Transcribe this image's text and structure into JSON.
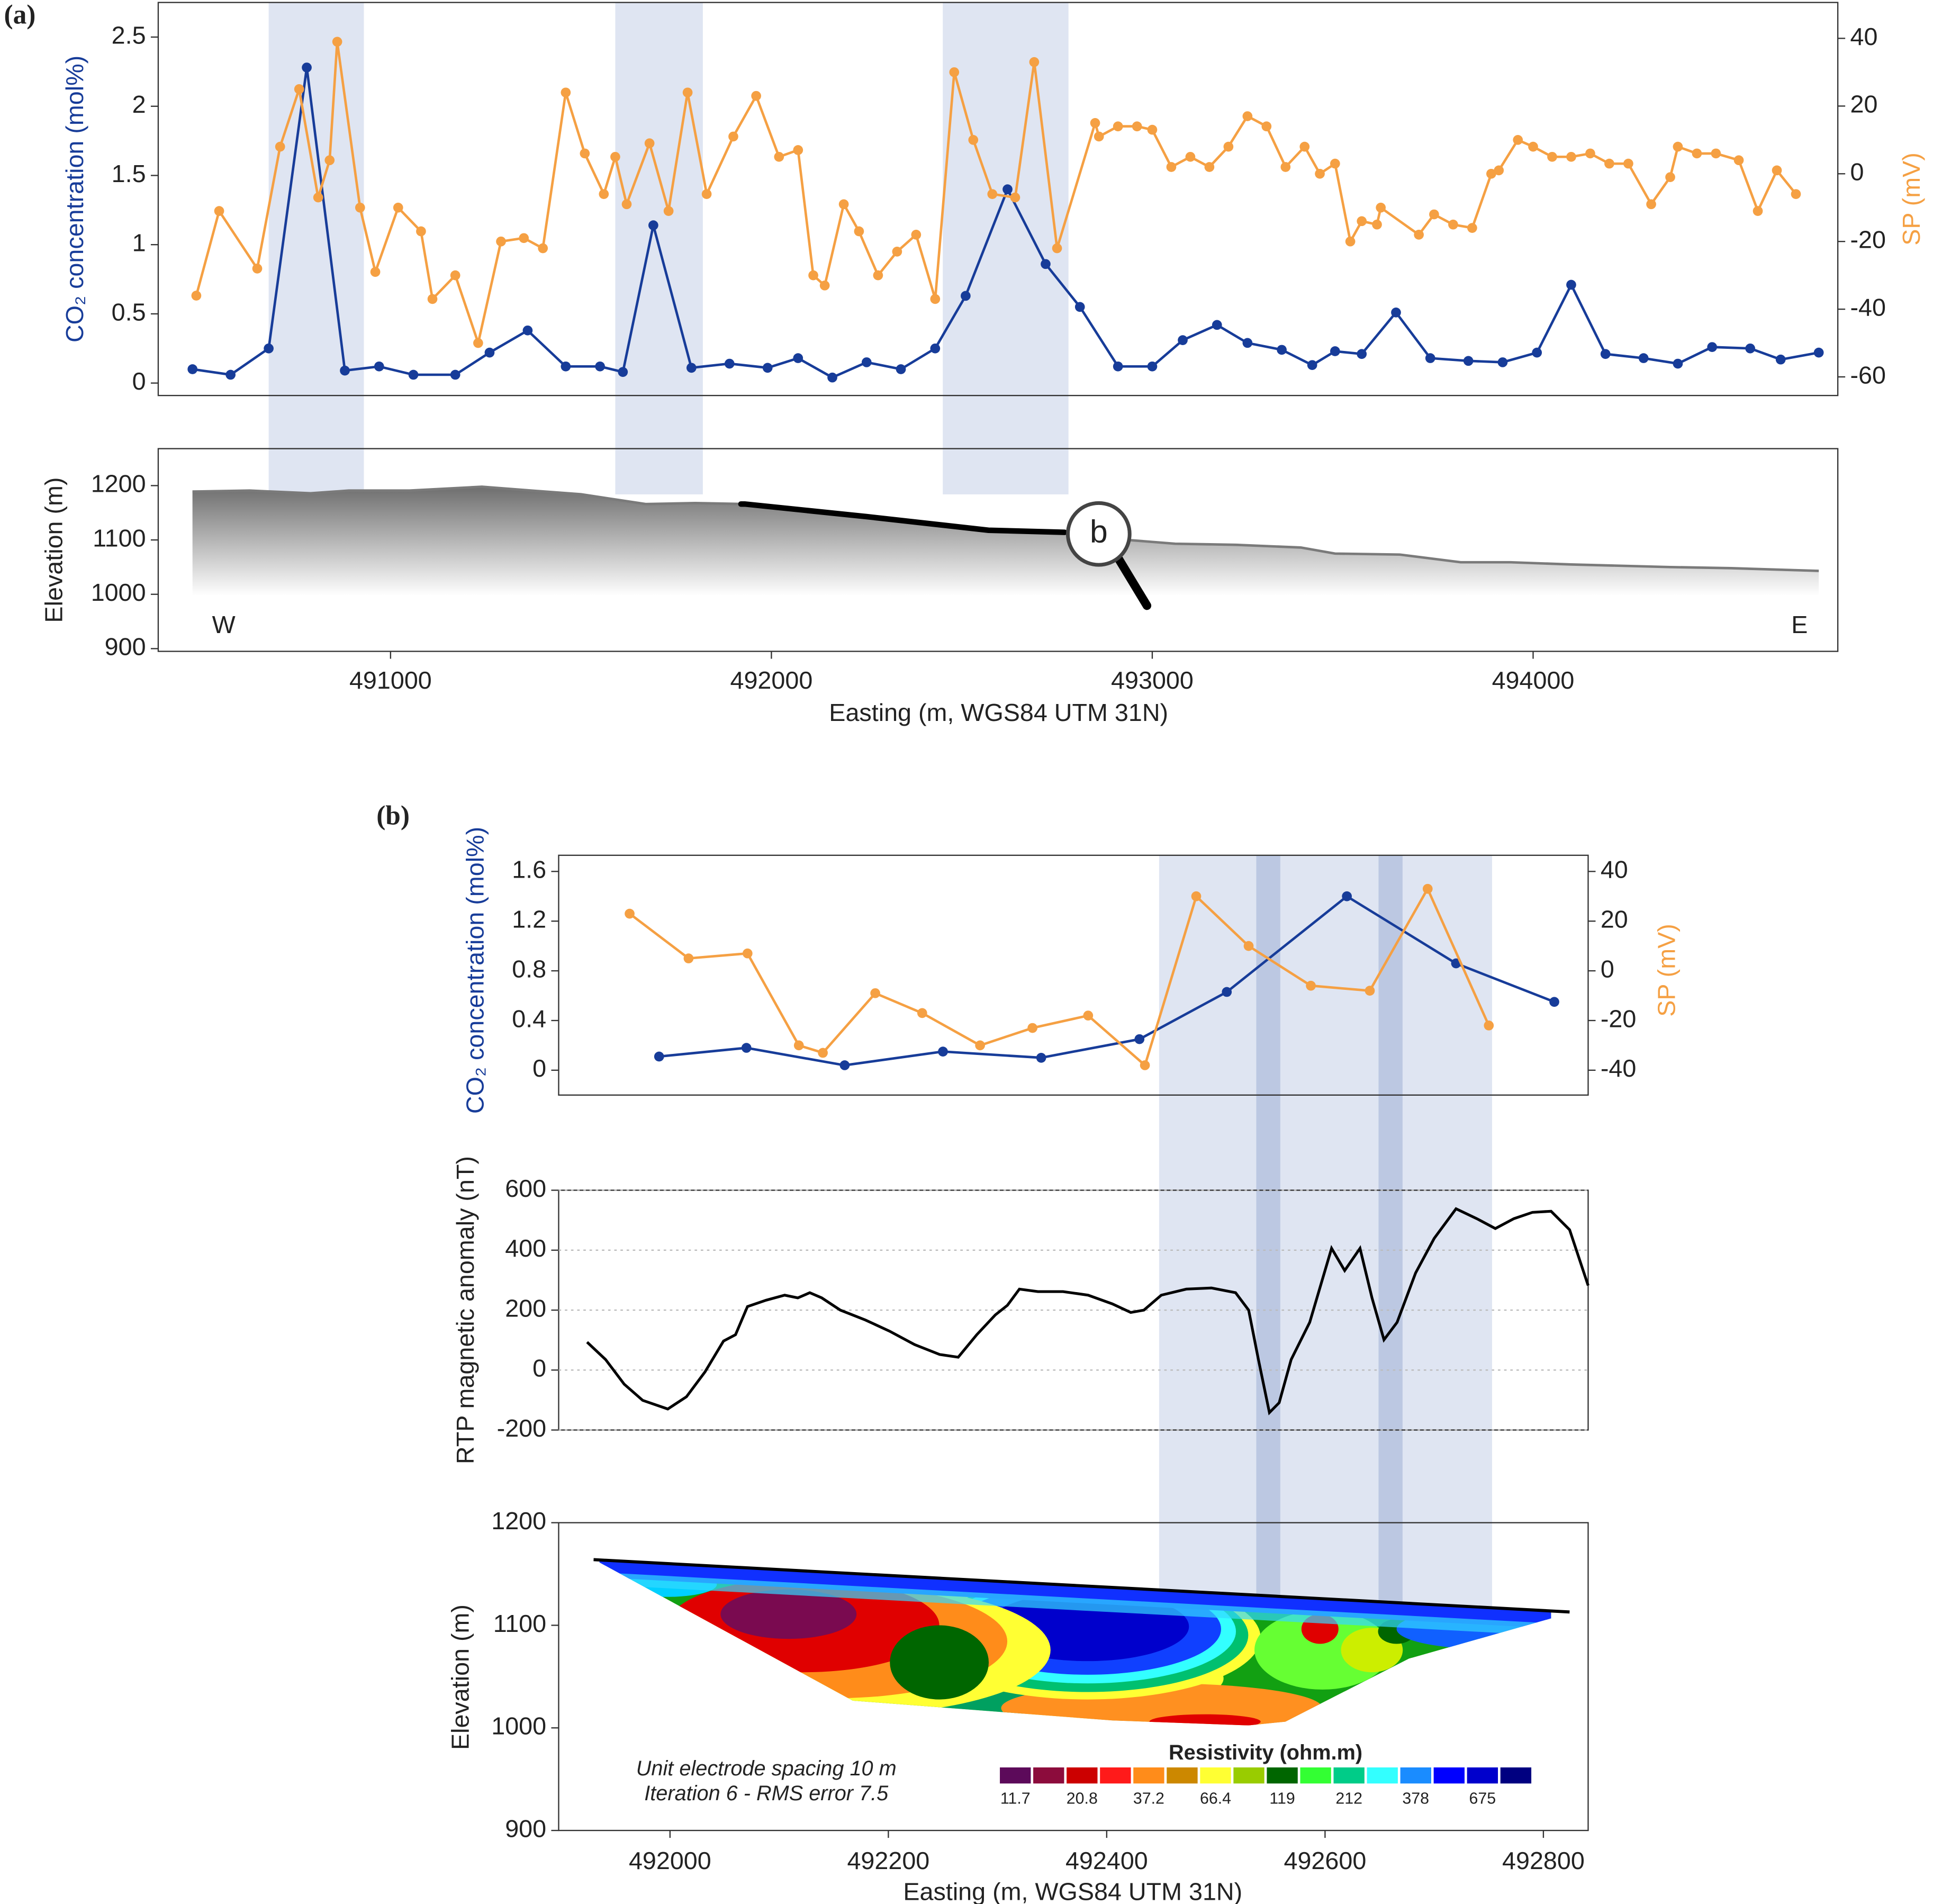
{
  "chart_data": [
    {
      "type": "line",
      "panel": "(a)",
      "ylabel": "CO₂ concentration (mol%)",
      "y2label": "SP (mV)",
      "xlim": [
        490390,
        494800
      ],
      "ylim": [
        -0.09,
        2.75
      ],
      "yticks": [
        0,
        0.5,
        1,
        1.5,
        2,
        2.5
      ],
      "y2lim": [
        -65.5,
        50.6
      ],
      "y2ticks": [
        -60,
        -40,
        -20,
        0,
        20,
        40
      ],
      "bands": [
        [
          490680,
          490930
        ],
        [
          491590,
          491820
        ],
        [
          492450,
          492780
        ]
      ],
      "band_color": "#dfe5f2",
      "series": [
        {
          "color": "#173c99",
          "markers": true,
          "x": [
            490480,
            490580,
            490680,
            490780,
            490880,
            490970,
            491060,
            491170,
            491260,
            491360,
            491460,
            491550,
            491610,
            491690,
            491790,
            491890,
            491990,
            492070,
            492160,
            492250,
            492340,
            492430,
            492510,
            492620,
            492720,
            492810,
            492910,
            493000,
            493080,
            493170,
            493250,
            493340,
            493420,
            493480,
            493550,
            493640,
            493730,
            493830,
            493920,
            494010,
            494100,
            494190,
            494290,
            494380,
            494470,
            494570,
            494650,
            494750
          ],
          "values": [
            0.1,
            0.06,
            0.25,
            2.28,
            0.09,
            0.12,
            0.06,
            0.06,
            0.22,
            0.38,
            0.12,
            0.12,
            0.08,
            1.14,
            0.11,
            0.14,
            0.11,
            0.18,
            0.04,
            0.15,
            0.1,
            0.25,
            0.63,
            1.4,
            0.86,
            0.55,
            0.12,
            0.12,
            0.31,
            0.42,
            0.29,
            0.24,
            0.13,
            0.23,
            0.21,
            0.51,
            0.18,
            0.16,
            0.15,
            0.22,
            0.71,
            0.21,
            0.18,
            0.14,
            0.26,
            0.25,
            0.17,
            0.22
          ]
        },
        {
          "color": "#f5a043",
          "markers": true,
          "axis": "y2",
          "x": [
            490490,
            490550,
            490650,
            490710,
            490760,
            490810,
            490840,
            490860,
            490920,
            490960,
            491020,
            491080,
            491110,
            491170,
            491230,
            491290,
            491350,
            491400,
            491460,
            491510,
            491560,
            491590,
            491620,
            491680,
            491730,
            491780,
            491830,
            491900,
            491960,
            492020,
            492070,
            492110,
            492140,
            492190,
            492230,
            492280,
            492330,
            492380,
            492430,
            492480,
            492530,
            492580,
            492640,
            492690,
            492750,
            492850,
            492860,
            492910,
            492960,
            493000,
            493050,
            493100,
            493150,
            493200,
            493250,
            493300,
            493350,
            493400,
            493440,
            493480,
            493520,
            493550,
            493590,
            493600,
            493700,
            493740,
            493790,
            493840,
            493890,
            493910,
            493960,
            494000,
            494050,
            494100,
            494150,
            494200,
            494250,
            494310,
            494360,
            494380,
            494430,
            494480,
            494540,
            494590,
            494640,
            494690
          ],
          "values": [
            -36,
            -11,
            -28,
            8,
            25,
            -7,
            4,
            39,
            -10,
            -29,
            -10,
            -17,
            -37,
            -30,
            -50,
            -20,
            -19,
            -22,
            24,
            6,
            -6,
            5,
            -9,
            9,
            -11,
            24,
            -6,
            11,
            23,
            5,
            7,
            -30,
            -33,
            -9,
            -17,
            -30,
            -23,
            -18,
            -37,
            30,
            10,
            -6,
            -7,
            33,
            -22,
            15,
            11,
            14,
            14,
            13,
            2,
            5,
            2,
            8,
            17,
            14,
            2,
            8,
            0,
            3,
            -20,
            -14,
            -15,
            -10,
            -18,
            -12,
            -15,
            -16,
            0,
            1,
            10,
            8,
            5,
            5,
            6,
            3,
            3,
            -9,
            -1,
            8,
            6,
            6,
            4,
            -11,
            1,
            -6
          ]
        }
      ]
    },
    {
      "type": "area",
      "ylabel": "Elevation (m)",
      "xlabel": "Easting (m, WGS84 UTM 31N)",
      "xlim": [
        490390,
        494800
      ],
      "xticks": [
        491000,
        492000,
        493000,
        494000
      ],
      "ylim": [
        895,
        1268
      ],
      "yticks": [
        900,
        1000,
        1100,
        1200
      ],
      "color": "#7a7a7a",
      "west": "W",
      "east": "E",
      "magnifier": "b",
      "section_x": [
        491920,
        492770
      ],
      "x": [
        490480,
        490630,
        490790,
        490890,
        491050,
        491240,
        491370,
        491500,
        491670,
        491800,
        491930,
        492250,
        492570,
        492770,
        492900,
        493060,
        493220,
        493390,
        493480,
        493650,
        493810,
        493940,
        494100,
        494360,
        494520,
        494750
      ],
      "values": [
        1189,
        1191,
        1186,
        1191,
        1191,
        1198,
        1191,
        1184,
        1166,
        1168,
        1166,
        1143,
        1118,
        1114,
        1102,
        1093,
        1091,
        1086,
        1075,
        1073,
        1059,
        1059,
        1055,
        1050,
        1048,
        1043
      ]
    },
    {
      "type": "line",
      "panel": "(b)",
      "ylabel": "CO₂ concentration (mol%)",
      "y2label": "SP (mV)",
      "xlim": [
        491898,
        492841
      ],
      "ylim": [
        -0.2,
        1.73
      ],
      "yticks": [
        0,
        0.4,
        0.8,
        1.2,
        1.6
      ],
      "y2lim": [
        -50,
        46.5
      ],
      "y2ticks": [
        -40,
        -20,
        0,
        20,
        40
      ],
      "bands": [
        [
          492448,
          492753
        ]
      ],
      "band_color": "#dfe5f2",
      "dark_bands": [
        [
          492537,
          492559
        ],
        [
          492649,
          492671
        ]
      ],
      "dark_band_color": "#bcc8e2",
      "series": [
        {
          "color": "#173c99",
          "markers": true,
          "x": [
            491990,
            492070,
            492160,
            492250,
            492340,
            492430,
            492510,
            492620,
            492720,
            492810
          ],
          "values": [
            0.11,
            0.18,
            0.04,
            0.15,
            0.1,
            0.25,
            0.63,
            1.4,
            0.86,
            0.55
          ]
        },
        {
          "color": "#f5a043",
          "markers": true,
          "axis": "y2",
          "x": [
            491963,
            492017,
            492071,
            492118,
            492140,
            492188,
            492231,
            492284,
            492332,
            492383,
            492435,
            492482,
            492530,
            492587,
            492641,
            492694,
            492750
          ],
          "values": [
            23,
            5,
            7,
            -30,
            -33,
            -9,
            -17,
            -30,
            -23,
            -18,
            -38,
            30,
            10,
            -6,
            -8,
            33,
            -22
          ]
        }
      ]
    },
    {
      "type": "line",
      "ylabel": "RTP magnetic anomaly (nT)",
      "xlim": [
        491898,
        492841
      ],
      "ylim": [
        -200,
        600
      ],
      "yticks": [
        -200,
        0,
        200,
        400,
        600
      ],
      "grid": true,
      "series": [
        {
          "color": "#000000",
          "markers": false,
          "x": [
            491924,
            491941,
            491958,
            491975,
            491998,
            492015,
            492032,
            492049,
            492060,
            492071,
            492088,
            492105,
            492117,
            492128,
            492139,
            492156,
            492179,
            492201,
            492224,
            492247,
            492264,
            492281,
            492298,
            492309,
            492320,
            492337,
            492360,
            492383,
            492405,
            492422,
            492434,
            492450,
            492473,
            492496,
            492518,
            492530,
            492539,
            492549,
            492558,
            492569,
            492586,
            492606,
            492618,
            492632,
            492643,
            492654,
            492666,
            492683,
            492700,
            492720,
            492739,
            492756,
            492773,
            492790,
            492807,
            492824,
            492841
          ],
          "values": [
            93,
            35,
            -47,
            -101,
            -130,
            -89,
            -6,
            97,
            118,
            212,
            233,
            250,
            241,
            258,
            241,
            200,
            167,
            130,
            85,
            52,
            43,
            118,
            184,
            216,
            270,
            262,
            262,
            250,
            221,
            192,
            200,
            250,
            270,
            274,
            258,
            200,
            35,
            -142,
            -109,
            35,
            159,
            406,
            332,
            406,
            241,
            101,
            159,
            324,
            439,
            538,
            505,
            472,
            505,
            526,
            530,
            468,
            282
          ]
        }
      ]
    },
    {
      "type": "section",
      "ylabel": "Elevation (m)",
      "xlabel": "Easting (m, WGS84 UTM 31N)",
      "xlim": [
        491898,
        492841
      ],
      "xticks": [
        492000,
        492200,
        492400,
        492600,
        492800
      ],
      "ylim": [
        900,
        1200
      ],
      "yticks": [
        900,
        1000,
        1100,
        1200
      ],
      "topography": {
        "x": [
          491930,
          492824
        ],
        "values": [
          1164,
          1113
        ]
      },
      "notes": [
        "Unit electrode spacing 10 m",
        "Iteration 6 - RMS error 7.5"
      ],
      "colorbar": {
        "title": "Resistivity (ohm.m)",
        "colors": [
          "#5c0a5a",
          "#8c0c3c",
          "#cc0000",
          "#ff1a1a",
          "#ff8c1a",
          "#cc8800",
          "#ffff33",
          "#99cc00",
          "#006600",
          "#33ff33",
          "#00cc88",
          "#33ffff",
          "#1a8cff",
          "#0000ff",
          "#0000cc",
          "#000080"
        ],
        "ticks": [
          11.7,
          20.8,
          37.2,
          66.4,
          119,
          212,
          378,
          675
        ]
      }
    }
  ]
}
